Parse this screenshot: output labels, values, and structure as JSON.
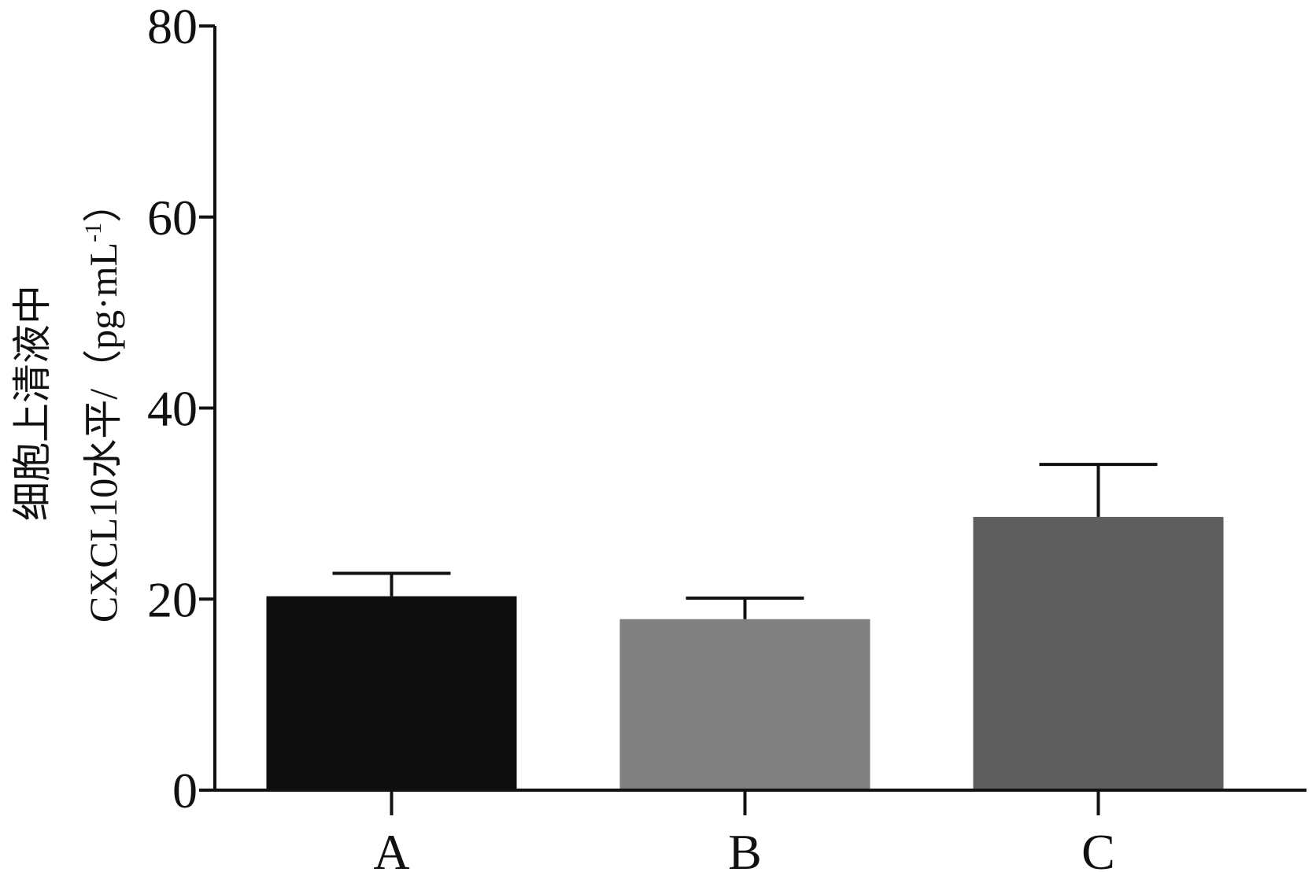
{
  "chart_data": {
    "type": "bar",
    "title": "",
    "categories": [
      "A",
      "B",
      "C"
    ],
    "values": [
      20.3,
      17.9,
      28.6
    ],
    "errors": [
      2.4,
      2.2,
      5.5
    ],
    "colors": [
      "#0e0e0e",
      "#808080",
      "#5e5e5e"
    ],
    "ylim": [
      0,
      80
    ],
    "yticks": [
      0,
      20,
      40,
      60,
      80
    ],
    "xlabel": "",
    "ylabel_line1": "细胞上清液中",
    "ylabel_line2": "CXCL10水平/（pg·mL",
    "ylabel_sup": "-1",
    "ylabel_close": "）",
    "grid": false,
    "legend": "none"
  }
}
